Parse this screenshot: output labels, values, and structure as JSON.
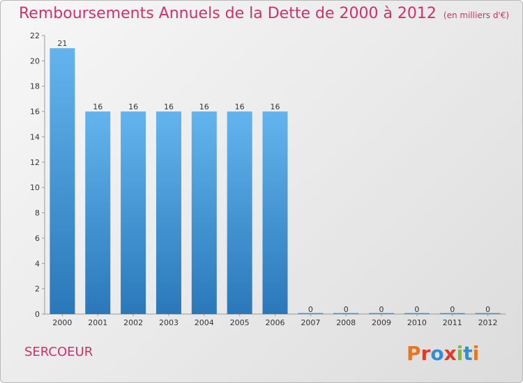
{
  "header": {
    "title": "Remboursements Annuels de la Dette de 2000 à 2012",
    "unit": "(en milliers d'€)"
  },
  "footer": {
    "town": "SERCOEUR",
    "logo": "Proxiti"
  },
  "colors": {
    "title": "#d0306a",
    "bar_top": "#63b4ee",
    "bar_bottom": "#2a78b9",
    "logo_letters": [
      "#e8761e",
      "#e23a2a",
      "#2f8fd2",
      "#e23a2a",
      "#7bbf2a",
      "#2f8fd2",
      "#e8761e"
    ]
  },
  "chart_data": {
    "type": "bar",
    "title": "Remboursements Annuels de la Dette de 2000 à 2012",
    "subtitle": "(en milliers d'€)",
    "xlabel": "",
    "ylabel": "",
    "categories": [
      "2000",
      "2001",
      "2002",
      "2003",
      "2004",
      "2005",
      "2006",
      "2007",
      "2008",
      "2009",
      "2010",
      "2011",
      "2012"
    ],
    "values": [
      21,
      16,
      16,
      16,
      16,
      16,
      16,
      0,
      0,
      0,
      0,
      0,
      0
    ],
    "data_labels": [
      "21",
      "16",
      "16",
      "16",
      "16",
      "16",
      "16",
      "0",
      "0",
      "0",
      "0",
      "0",
      "0"
    ],
    "ylim": [
      0,
      22
    ],
    "yticks": [
      0,
      2,
      4,
      6,
      8,
      10,
      12,
      14,
      16,
      18,
      20,
      22
    ],
    "grid": false,
    "legend": "none"
  }
}
